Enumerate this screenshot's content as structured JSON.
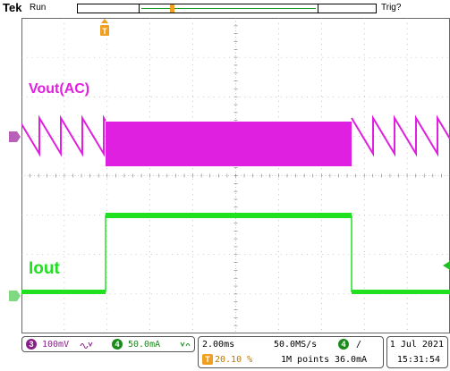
{
  "header": {
    "brand": "Tek",
    "run_state": "Run",
    "trigger_state": "Trig?"
  },
  "traces": {
    "ch3": {
      "label": "Vout(AC)",
      "color": "#e020e0",
      "marker": "3"
    },
    "ch4": {
      "label": "Iout",
      "color": "#20e020",
      "marker": "4"
    }
  },
  "readout": {
    "ch3_scale": "100mV",
    "ch3_bw_icon": "bandwidth-limit-icon",
    "ch4_scale": "50.0mA",
    "ch4_bw_icon": "bandwidth-limit-icon",
    "ch3_num": "3",
    "ch4_num": "4",
    "timebase": "2.00ms",
    "sample_rate": "50.0MS/s",
    "trigger_channel": "4",
    "trigger_slope": "/",
    "trigger_position_icon": "T",
    "trigger_position": "20.10 %",
    "record_length": "1M points",
    "trigger_level": "36.0mA",
    "date": "1 Jul  2021",
    "time": "15:31:54"
  },
  "colors": {
    "ch3": "#e020e0",
    "ch4": "#20e020",
    "trigger": "#f0a020",
    "grid": "#9a9a9a"
  }
}
